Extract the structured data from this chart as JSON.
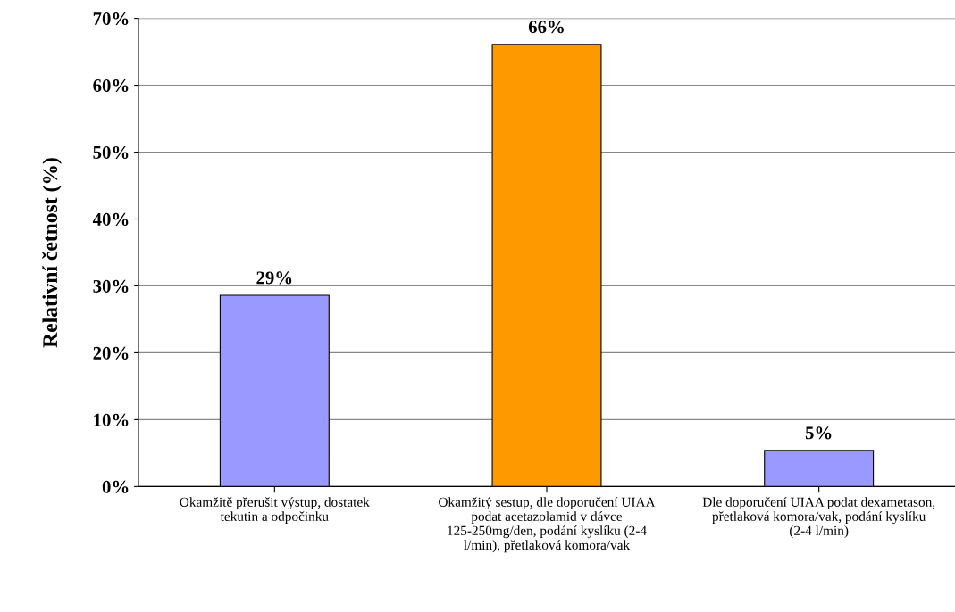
{
  "chart_data": {
    "type": "bar",
    "ylabel": "Relativní četnost (%)",
    "categories": [
      "Okamžitě přerušit výstup, dostatek tekutin a odpočinku",
      "Okamžitý sestup, dle doporučení UIAA podat acetazolamid v dávce 125-250mg/den, podání kyslíku (2-4 l/min), přetlaková komora/vak",
      "Dle doporučení UIAA podat dexametason, přetlaková komora/vak, podání kyslíku (2-4 l/min)"
    ],
    "values": [
      28.6,
      66.1,
      5.4
    ],
    "colors": [
      "#9999ff",
      "#ff9900",
      "#9999ff"
    ],
    "value_labels": [
      "29%",
      "66%",
      "5%"
    ],
    "ylim": [
      0,
      70
    ],
    "yticks": [
      {
        "value": 0,
        "label": "0%"
      },
      {
        "value": 10,
        "label": "10%"
      },
      {
        "value": 20,
        "label": "20%"
      },
      {
        "value": 30,
        "label": "30%"
      },
      {
        "value": 40,
        "label": "40%"
      },
      {
        "value": 50,
        "label": "50%"
      },
      {
        "value": 60,
        "label": "60%"
      },
      {
        "value": 70,
        "label": "70%"
      }
    ],
    "grid": "y",
    "legend": false
  }
}
